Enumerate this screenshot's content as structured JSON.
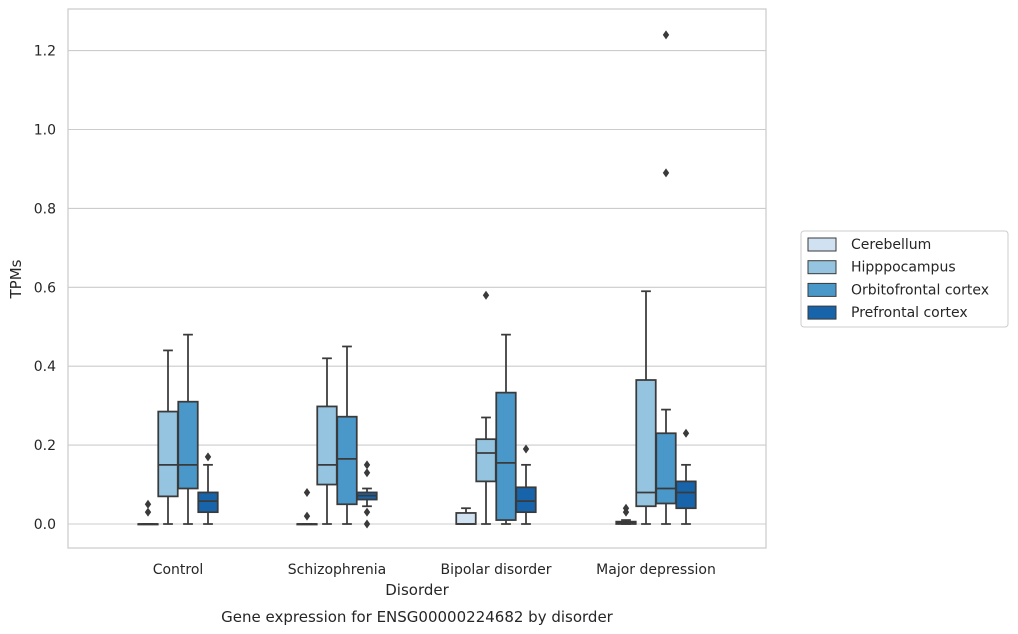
{
  "caption": "Gene expression for ENSG00000224682 by disorder",
  "chart_data": {
    "type": "box",
    "xlabel": "Disorder",
    "ylabel": "TPMs",
    "ylim": [
      -0.06,
      1.31
    ],
    "yticks": [
      0.0,
      0.2,
      0.4,
      0.6,
      0.8,
      1.0,
      1.2
    ],
    "ytick_labels": [
      "0.0",
      "0.2",
      "0.4",
      "0.6",
      "0.8",
      "1.0",
      "1.2"
    ],
    "grid": "horizontal",
    "legend_position": "right",
    "categories": [
      "Control",
      "Schizophrenia",
      "Bipolar disorder",
      "Major depression"
    ],
    "series": [
      {
        "name": "Cerebellum",
        "color": "#d0e1f2",
        "boxes": [
          {
            "whislo": 0.0,
            "q1": 0.0,
            "med": 0.0,
            "q3": 0.0,
            "whishi": 0.0,
            "fliers": [
              0.03,
              0.05
            ]
          },
          {
            "whislo": 0.0,
            "q1": 0.0,
            "med": 0.0,
            "q3": 0.0,
            "whishi": 0.0,
            "fliers": [
              0.02,
              0.08
            ]
          },
          {
            "whislo": 0.0,
            "q1": 0.0,
            "med": 0.0,
            "q3": 0.028,
            "whishi": 0.04,
            "fliers": []
          },
          {
            "whislo": 0.0,
            "q1": 0.0,
            "med": 0.002,
            "q3": 0.006,
            "whishi": 0.01,
            "fliers": [
              0.03,
              0.04
            ]
          }
        ]
      },
      {
        "name": "Hipppocampus",
        "color": "#94c4df",
        "boxes": [
          {
            "whislo": 0.0,
            "q1": 0.07,
            "med": 0.15,
            "q3": 0.285,
            "whishi": 0.44,
            "fliers": []
          },
          {
            "whislo": 0.0,
            "q1": 0.1,
            "med": 0.15,
            "q3": 0.298,
            "whishi": 0.42,
            "fliers": []
          },
          {
            "whislo": 0.0,
            "q1": 0.108,
            "med": 0.18,
            "q3": 0.215,
            "whishi": 0.27,
            "fliers": [
              0.58
            ]
          },
          {
            "whislo": 0.0,
            "q1": 0.045,
            "med": 0.08,
            "q3": 0.365,
            "whishi": 0.59,
            "fliers": []
          }
        ]
      },
      {
        "name": "Orbitofrontal cortex",
        "color": "#4a98c9",
        "boxes": [
          {
            "whislo": 0.0,
            "q1": 0.09,
            "med": 0.15,
            "q3": 0.31,
            "whishi": 0.48,
            "fliers": []
          },
          {
            "whislo": 0.0,
            "q1": 0.05,
            "med": 0.165,
            "q3": 0.272,
            "whishi": 0.45,
            "fliers": []
          },
          {
            "whislo": 0.0,
            "q1": 0.01,
            "med": 0.155,
            "q3": 0.333,
            "whishi": 0.48,
            "fliers": []
          },
          {
            "whislo": 0.0,
            "q1": 0.052,
            "med": 0.09,
            "q3": 0.23,
            "whishi": 0.29,
            "fliers": [
              0.89,
              1.24
            ]
          }
        ]
      },
      {
        "name": "Prefrontal cortex",
        "color": "#1764ab",
        "boxes": [
          {
            "whislo": 0.0,
            "q1": 0.03,
            "med": 0.058,
            "q3": 0.08,
            "whishi": 0.15,
            "fliers": [
              0.17
            ]
          },
          {
            "whislo": 0.045,
            "q1": 0.062,
            "med": 0.072,
            "q3": 0.08,
            "whishi": 0.09,
            "fliers": [
              0.0,
              0.03,
              0.13,
              0.15
            ]
          },
          {
            "whislo": 0.0,
            "q1": 0.03,
            "med": 0.058,
            "q3": 0.093,
            "whishi": 0.15,
            "fliers": [
              0.19
            ]
          },
          {
            "whislo": 0.0,
            "q1": 0.04,
            "med": 0.08,
            "q3": 0.108,
            "whishi": 0.15,
            "fliers": [
              0.23
            ]
          }
        ]
      }
    ]
  }
}
